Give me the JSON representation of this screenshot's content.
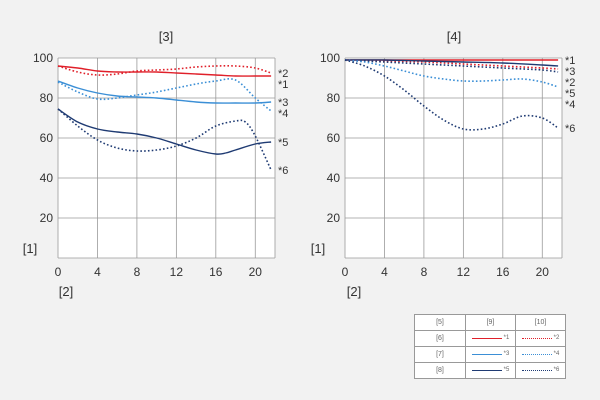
{
  "chart_data": [
    {
      "type": "line",
      "title": "[3]",
      "xlabel": "[2]",
      "ylabel": "[1]",
      "xlim": [
        0,
        22
      ],
      "ylim": [
        0,
        100
      ],
      "xticks": [
        "0",
        "4",
        "8",
        "12",
        "16",
        "20"
      ],
      "yticks": [
        "20",
        "40",
        "60",
        "80",
        "100"
      ],
      "grid": true,
      "series": [
        {
          "name": "*1",
          "color": "#e0202a",
          "style": "solid",
          "x": [
            0,
            2,
            4,
            6,
            8,
            10,
            12,
            14,
            16,
            18,
            20,
            21.6
          ],
          "y": [
            96,
            95,
            93.5,
            93,
            93,
            93,
            92.5,
            92,
            91.5,
            91,
            91,
            91
          ]
        },
        {
          "name": "*2",
          "color": "#e0202a",
          "style": "dotted",
          "x": [
            0,
            2,
            4,
            6,
            8,
            10,
            12,
            14,
            16,
            18,
            20,
            21.6
          ],
          "y": [
            96,
            93,
            91.5,
            92,
            93.5,
            94,
            94.5,
            95.5,
            96,
            96,
            95,
            92.5
          ]
        },
        {
          "name": "*3",
          "color": "#3b8fd6",
          "style": "solid",
          "x": [
            0,
            2,
            4,
            6,
            8,
            10,
            12,
            14,
            16,
            18,
            20,
            21.6
          ],
          "y": [
            88.5,
            85,
            82.5,
            81,
            80.5,
            80,
            79,
            78,
            77.5,
            77.5,
            77.5,
            78
          ]
        },
        {
          "name": "*4",
          "color": "#3b8fd6",
          "style": "dotted",
          "x": [
            0,
            2,
            4,
            6,
            8,
            10,
            12,
            14,
            16,
            18,
            20,
            21.6
          ],
          "y": [
            88,
            83,
            79.5,
            80,
            81.5,
            83,
            85,
            87,
            88.5,
            89,
            80,
            73.5
          ]
        },
        {
          "name": "*5",
          "color": "#1f3b73",
          "style": "solid",
          "x": [
            0,
            2,
            4,
            6,
            8,
            10,
            12,
            14,
            16,
            17,
            18,
            20,
            21.6
          ],
          "y": [
            74.5,
            68,
            64.5,
            63,
            62,
            60,
            57,
            54,
            52,
            52.5,
            54,
            57,
            58
          ]
        },
        {
          "name": "*6",
          "color": "#1f3b73",
          "style": "dotted",
          "x": [
            0,
            2,
            4,
            6,
            8,
            10,
            12,
            14,
            16,
            18,
            19,
            20,
            21.6
          ],
          "y": [
            74.5,
            66,
            59,
            55,
            53.5,
            54,
            56,
            60,
            66,
            68.5,
            68,
            61,
            44
          ]
        }
      ],
      "series_end_labels": [
        "*2",
        "*1",
        "*3",
        "*4",
        "*5",
        "*6"
      ]
    },
    {
      "type": "line",
      "title": "[4]",
      "xlabel": "[2]",
      "ylabel": "[1]",
      "xlim": [
        0,
        22
      ],
      "ylim": [
        0,
        100
      ],
      "xticks": [
        "0",
        "4",
        "8",
        "12",
        "16",
        "20"
      ],
      "yticks": [
        "20",
        "40",
        "60",
        "80",
        "100"
      ],
      "grid": true,
      "series": [
        {
          "name": "*1",
          "color": "#e0202a",
          "style": "solid",
          "x": [
            0,
            4,
            8,
            12,
            16,
            20,
            21.6
          ],
          "y": [
            99,
            99,
            99,
            99,
            99,
            99,
            99
          ]
        },
        {
          "name": "*2",
          "color": "#e0202a",
          "style": "dotted",
          "x": [
            0,
            4,
            8,
            12,
            16,
            20,
            21.6
          ],
          "y": [
            99,
            98.5,
            98,
            97,
            96,
            95,
            94.5
          ]
        },
        {
          "name": "*3",
          "color": "#1f3b73",
          "style": "solid",
          "x": [
            0,
            4,
            8,
            12,
            16,
            20,
            21.6
          ],
          "y": [
            99,
            99,
            98.5,
            98,
            97.5,
            96.5,
            96
          ]
        },
        {
          "name": "*4",
          "color": "#1f3b73",
          "style": "dotted",
          "x": [
            0,
            4,
            8,
            12,
            16,
            20,
            21.6
          ],
          "y": [
            99,
            98,
            97,
            96,
            95,
            94,
            93
          ]
        },
        {
          "name": "*5",
          "color": "#3b8fd6",
          "style": "dotted",
          "x": [
            0,
            2,
            4,
            6,
            8,
            10,
            12,
            14,
            16,
            18,
            20,
            21.6
          ],
          "y": [
            99,
            98,
            96,
            93.5,
            91,
            89.5,
            88.5,
            88.5,
            89,
            89.5,
            88,
            85.5
          ]
        },
        {
          "name": "*6",
          "color": "#1f3b73",
          "style": "dotted",
          "x": [
            0,
            2,
            4,
            6,
            8,
            10,
            12,
            14,
            16,
            18,
            20,
            21.6
          ],
          "y": [
            99,
            96,
            91,
            84,
            76,
            69,
            64.5,
            64.5,
            67,
            71,
            70,
            65
          ]
        }
      ],
      "series_end_labels": [
        "*1",
        "*3",
        "*2",
        "*5",
        "*4",
        "*6"
      ]
    }
  ],
  "legend": {
    "header": [
      "[5]",
      "[9]",
      "[10]"
    ],
    "rows": [
      {
        "label": "[6]",
        "a": "*1",
        "b": "*2",
        "color": "#e0202a"
      },
      {
        "label": "[7]",
        "a": "*3",
        "b": "*4",
        "color": "#3b8fd6"
      },
      {
        "label": "[8]",
        "a": "*5",
        "b": "*6",
        "color": "#1f3b73"
      }
    ]
  }
}
